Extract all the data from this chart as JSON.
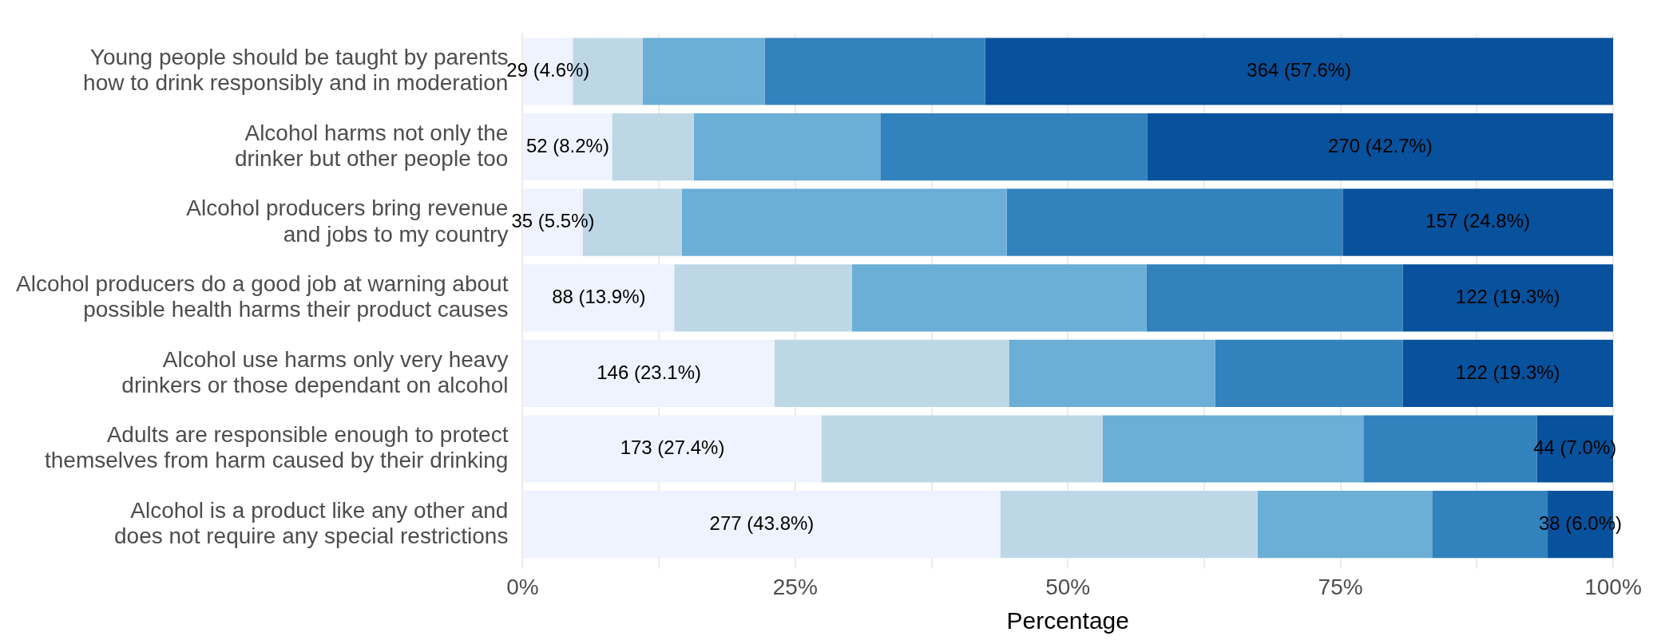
{
  "chart_data": {
    "type": "bar",
    "orientation": "horizontal",
    "stacked": true,
    "xlabel": "Percentage",
    "categories": [
      "Young people should be taught by parents\nhow to drink responsibly and in moderation",
      "Alcohol harms not only the\ndrinker but other people too",
      "Alcohol producers bring revenue\nand jobs to my country",
      "Alcohol producers do a good job at warning about\npossible health harms their product causes",
      "Alcohol use harms only very heavy\ndrinkers or those dependant on alcohol",
      "Adults are responsible enough to protect\nthemselves from harm caused by their drinking",
      "Alcohol is a product like any other and\ndoes not require any special restrictions"
    ],
    "series": [
      {
        "color": "#eff3ff",
        "values": [
          4.6,
          8.2,
          5.5,
          13.9,
          23.1,
          27.4,
          43.8
        ],
        "value_labels": [
          "29 (4.6%)",
          "52 (8.2%)",
          "35 (5.5%)",
          "88 (13.9%)",
          "146 (23.1%)",
          "173 (27.4%)",
          "277 (43.8%)"
        ]
      },
      {
        "color": "#bdd7e7",
        "values": [
          6.4,
          7.5,
          9.1,
          16.3,
          21.5,
          25.8,
          23.6
        ]
      },
      {
        "color": "#6baed6",
        "values": [
          11.2,
          17.1,
          29.8,
          27.0,
          18.9,
          23.9,
          16.0
        ]
      },
      {
        "color": "#3182bd",
        "values": [
          20.2,
          24.5,
          30.8,
          23.5,
          17.2,
          15.9,
          10.6
        ]
      },
      {
        "color": "#08519c",
        "values": [
          57.6,
          42.7,
          24.8,
          19.3,
          19.3,
          7.0,
          6.0
        ],
        "value_labels": [
          "364 (57.6%)",
          "270 (42.7%)",
          "157 (24.8%)",
          "122 (19.3%)",
          "122 (19.3%)",
          "44 (7.0%)",
          "38 (6.0%)"
        ]
      }
    ],
    "xlim": [
      0,
      100
    ],
    "xticks": [
      {
        "value": 0,
        "label": "0%"
      },
      {
        "value": 12.5,
        "label": null
      },
      {
        "value": 25,
        "label": "25%"
      },
      {
        "value": 37.5,
        "label": null
      },
      {
        "value": 50,
        "label": "50%"
      },
      {
        "value": 62.5,
        "label": null
      },
      {
        "value": 75,
        "label": "75%"
      },
      {
        "value": 87.5,
        "label": null
      },
      {
        "value": 100,
        "label": "100%"
      }
    ],
    "grid": "x",
    "legend": false
  }
}
